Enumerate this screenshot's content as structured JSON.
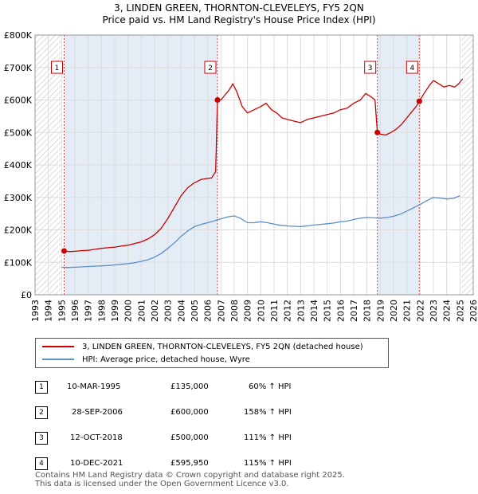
{
  "chart_data": {
    "type": "line",
    "title": "3, LINDEN GREEN, THORNTON-CLEVELEYS, FY5 2QN",
    "subtitle": "Price paid vs. HM Land Registry's House Price Index (HPI)",
    "y_ticks": [
      {
        "value": 0,
        "label": "£0"
      },
      {
        "value": 100000,
        "label": "£100K"
      },
      {
        "value": 200000,
        "label": "£200K"
      },
      {
        "value": 300000,
        "label": "£300K"
      },
      {
        "value": 400000,
        "label": "£400K"
      },
      {
        "value": 500000,
        "label": "£500K"
      },
      {
        "value": 600000,
        "label": "£600K"
      },
      {
        "value": 700000,
        "label": "£700K"
      },
      {
        "value": 800000,
        "label": "£800K"
      }
    ],
    "x_ticks": [
      "1993",
      "1994",
      "1995",
      "1996",
      "1997",
      "1998",
      "1999",
      "2000",
      "2001",
      "2002",
      "2003",
      "2004",
      "2005",
      "2006",
      "2007",
      "2008",
      "2009",
      "2010",
      "2011",
      "2012",
      "2013",
      "2014",
      "2015",
      "2016",
      "2017",
      "2018",
      "2019",
      "2020",
      "2021",
      "2022",
      "2023",
      "2024",
      "2025",
      "2026"
    ],
    "xlim": [
      1993,
      2026
    ],
    "ylim": [
      0,
      800000
    ],
    "grid": true,
    "series": [
      {
        "name": "3, LINDEN GREEN, THORNTON-CLEVELEYS, FY5 2QN (detached house)",
        "color": "#cc0000",
        "points": [
          [
            1995.19,
            135000
          ],
          [
            1995.6,
            133000
          ],
          [
            1996.0,
            134000
          ],
          [
            1996.5,
            136000
          ],
          [
            1997.0,
            137000
          ],
          [
            1997.5,
            140000
          ],
          [
            1998.0,
            143000
          ],
          [
            1998.5,
            145000
          ],
          [
            1999.0,
            147000
          ],
          [
            1999.5,
            150000
          ],
          [
            2000.0,
            153000
          ],
          [
            2000.5,
            158000
          ],
          [
            2001.0,
            163000
          ],
          [
            2001.5,
            172000
          ],
          [
            2002.0,
            185000
          ],
          [
            2002.5,
            205000
          ],
          [
            2003.0,
            235000
          ],
          [
            2003.5,
            270000
          ],
          [
            2004.0,
            305000
          ],
          [
            2004.5,
            330000
          ],
          [
            2005.0,
            345000
          ],
          [
            2005.5,
            355000
          ],
          [
            2005.9,
            358000
          ],
          [
            2006.3,
            360000
          ],
          [
            2006.6,
            380000
          ],
          [
            2006.74,
            600000
          ],
          [
            2007.0,
            600000
          ],
          [
            2007.3,
            615000
          ],
          [
            2007.6,
            630000
          ],
          [
            2007.9,
            650000
          ],
          [
            2008.2,
            625000
          ],
          [
            2008.6,
            580000
          ],
          [
            2009.0,
            560000
          ],
          [
            2009.5,
            570000
          ],
          [
            2010.0,
            580000
          ],
          [
            2010.4,
            590000
          ],
          [
            2010.8,
            570000
          ],
          [
            2011.2,
            560000
          ],
          [
            2011.6,
            545000
          ],
          [
            2012.0,
            540000
          ],
          [
            2012.5,
            535000
          ],
          [
            2013.0,
            530000
          ],
          [
            2013.5,
            540000
          ],
          [
            2014.0,
            545000
          ],
          [
            2014.5,
            550000
          ],
          [
            2015.0,
            555000
          ],
          [
            2015.5,
            560000
          ],
          [
            2016.0,
            570000
          ],
          [
            2016.5,
            575000
          ],
          [
            2017.0,
            590000
          ],
          [
            2017.5,
            600000
          ],
          [
            2017.9,
            620000
          ],
          [
            2018.3,
            610000
          ],
          [
            2018.6,
            600000
          ],
          [
            2018.78,
            500000
          ],
          [
            2019.0,
            495000
          ],
          [
            2019.4,
            492000
          ],
          [
            2019.8,
            500000
          ],
          [
            2020.2,
            510000
          ],
          [
            2020.6,
            525000
          ],
          [
            2021.0,
            545000
          ],
          [
            2021.4,
            565000
          ],
          [
            2021.7,
            580000
          ],
          [
            2021.94,
            595950
          ],
          [
            2022.3,
            620000
          ],
          [
            2022.7,
            645000
          ],
          [
            2023.0,
            660000
          ],
          [
            2023.4,
            650000
          ],
          [
            2023.8,
            640000
          ],
          [
            2024.2,
            645000
          ],
          [
            2024.6,
            640000
          ],
          [
            2024.9,
            650000
          ],
          [
            2025.2,
            665000
          ]
        ]
      },
      {
        "name": "HPI: Average price, detached house, Wyre",
        "color": "#5b8fc7",
        "points": [
          [
            1995.0,
            85000
          ],
          [
            1995.5,
            84000
          ],
          [
            1996.0,
            85000
          ],
          [
            1996.5,
            86000
          ],
          [
            1997.0,
            87000
          ],
          [
            1997.5,
            88000
          ],
          [
            1998.0,
            89000
          ],
          [
            1998.5,
            90000
          ],
          [
            1999.0,
            92000
          ],
          [
            1999.5,
            94000
          ],
          [
            2000.0,
            96000
          ],
          [
            2000.5,
            99000
          ],
          [
            2001.0,
            103000
          ],
          [
            2001.5,
            108000
          ],
          [
            2002.0,
            116000
          ],
          [
            2002.5,
            127000
          ],
          [
            2003.0,
            143000
          ],
          [
            2003.5,
            160000
          ],
          [
            2004.0,
            180000
          ],
          [
            2004.5,
            197000
          ],
          [
            2005.0,
            210000
          ],
          [
            2005.5,
            217000
          ],
          [
            2006.0,
            222000
          ],
          [
            2006.5,
            228000
          ],
          [
            2007.0,
            234000
          ],
          [
            2007.5,
            240000
          ],
          [
            2008.0,
            243000
          ],
          [
            2008.5,
            235000
          ],
          [
            2009.0,
            222000
          ],
          [
            2009.5,
            222000
          ],
          [
            2010.0,
            225000
          ],
          [
            2010.5,
            222000
          ],
          [
            2011.0,
            218000
          ],
          [
            2011.5,
            214000
          ],
          [
            2012.0,
            212000
          ],
          [
            2012.5,
            211000
          ],
          [
            2013.0,
            210000
          ],
          [
            2013.5,
            212000
          ],
          [
            2014.0,
            215000
          ],
          [
            2014.5,
            217000
          ],
          [
            2015.0,
            219000
          ],
          [
            2015.5,
            221000
          ],
          [
            2016.0,
            225000
          ],
          [
            2016.5,
            227000
          ],
          [
            2017.0,
            232000
          ],
          [
            2017.5,
            236000
          ],
          [
            2018.0,
            238000
          ],
          [
            2018.5,
            237000
          ],
          [
            2019.0,
            236000
          ],
          [
            2019.5,
            238000
          ],
          [
            2020.0,
            242000
          ],
          [
            2020.5,
            248000
          ],
          [
            2021.0,
            258000
          ],
          [
            2021.5,
            268000
          ],
          [
            2022.0,
            278000
          ],
          [
            2022.5,
            290000
          ],
          [
            2023.0,
            300000
          ],
          [
            2023.5,
            298000
          ],
          [
            2024.0,
            295000
          ],
          [
            2024.5,
            297000
          ],
          [
            2025.0,
            305000
          ]
        ]
      }
    ],
    "sales": [
      {
        "n": "1",
        "year": 1995.19,
        "price": 135000
      },
      {
        "n": "2",
        "year": 2006.74,
        "price": 600000
      },
      {
        "n": "3",
        "year": 2018.78,
        "price": 500000
      },
      {
        "n": "4",
        "year": 2021.94,
        "price": 595950
      }
    ],
    "shaded_periods": [
      [
        1995.19,
        2006.74
      ],
      [
        2018.78,
        2021.94
      ]
    ],
    "hatch_ranges": [
      [
        1993,
        1995.0
      ],
      [
        2025.1,
        2026
      ]
    ]
  },
  "legend": [
    {
      "label": "3, LINDEN GREEN, THORNTON-CLEVELEYS, FY5 2QN (detached house)",
      "color": "#cc0000"
    },
    {
      "label": "HPI: Average price, detached house, Wyre",
      "color": "#5b8fc7"
    }
  ],
  "table": [
    {
      "n": "1",
      "date": "10-MAR-1995",
      "price": "£135,000",
      "hpi": "60% ↑ HPI"
    },
    {
      "n": "2",
      "date": "28-SEP-2006",
      "price": "£600,000",
      "hpi": "158% ↑ HPI"
    },
    {
      "n": "3",
      "date": "12-OCT-2018",
      "price": "£500,000",
      "hpi": "111% ↑ HPI"
    },
    {
      "n": "4",
      "date": "10-DEC-2021",
      "price": "£595,950",
      "hpi": "115% ↑ HPI"
    }
  ],
  "footer": {
    "line1": "Contains HM Land Registry data © Crown copyright and database right 2025.",
    "line2": "This data is licensed under the Open Government Licence v3.0."
  }
}
